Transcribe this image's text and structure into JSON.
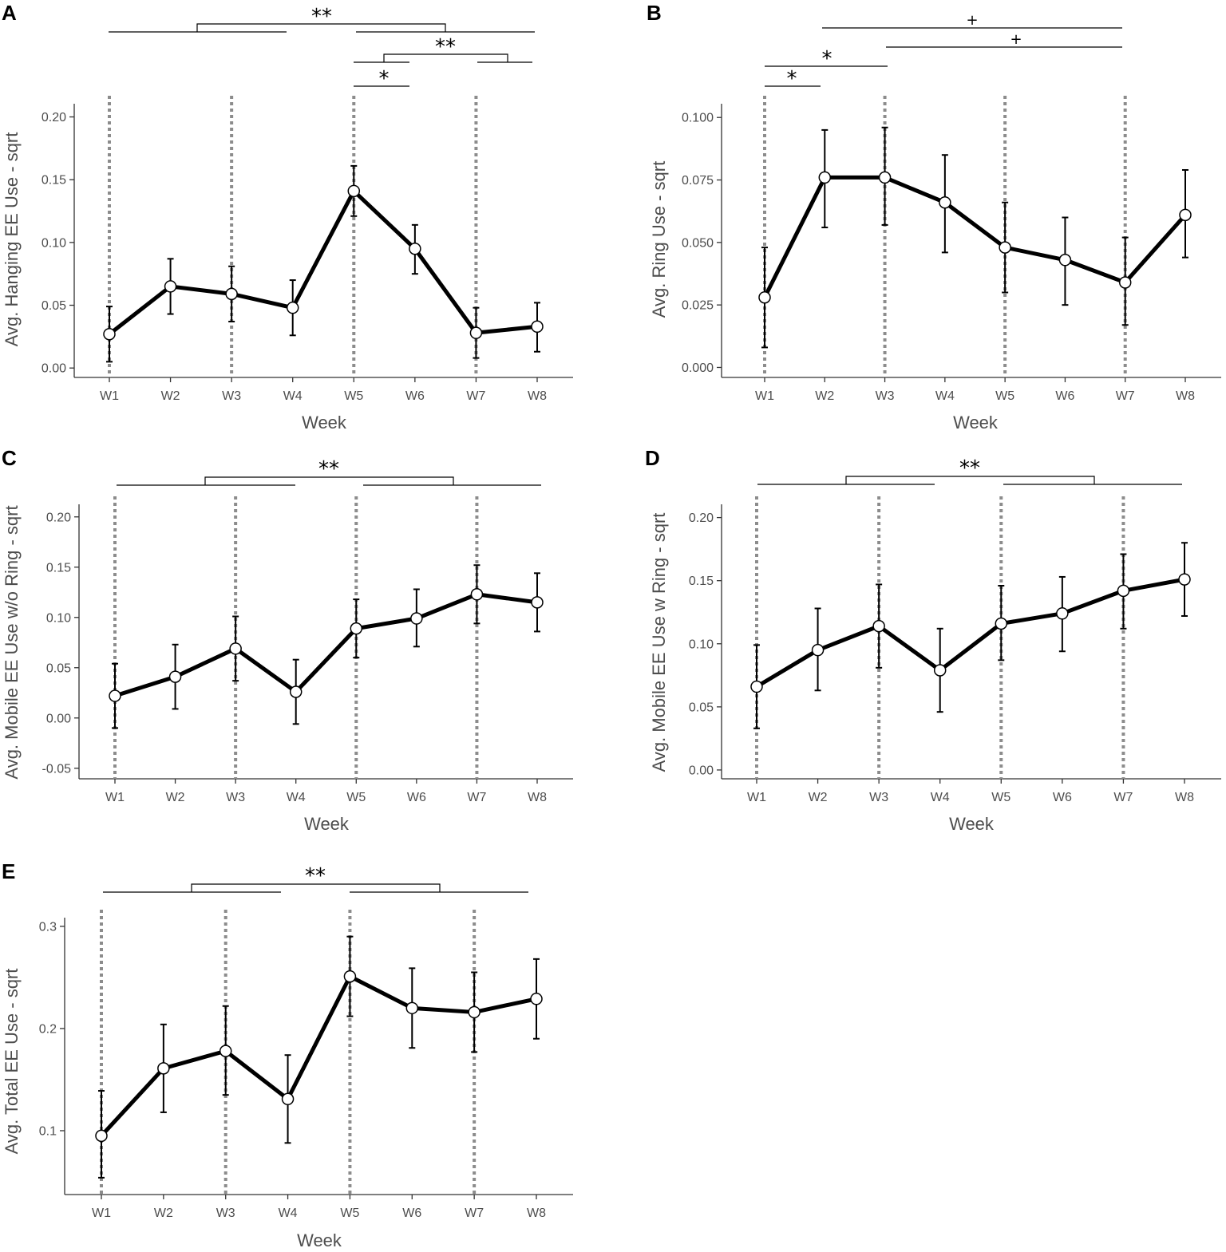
{
  "chart_data": [
    {
      "panel": "A",
      "type": "line",
      "xlabel": "Week",
      "ylabel": "Avg. Hanging EE Use - sqrt",
      "categories": [
        "W1",
        "W2",
        "W3",
        "W4",
        "W5",
        "W6",
        "W7",
        "W8"
      ],
      "values": [
        0.027,
        0.065,
        0.059,
        0.048,
        0.141,
        0.095,
        0.028,
        0.033
      ],
      "err_lo": [
        0.005,
        0.043,
        0.037,
        0.026,
        0.121,
        0.075,
        0.008,
        0.013
      ],
      "err_hi": [
        0.049,
        0.087,
        0.081,
        0.07,
        0.161,
        0.114,
        0.048,
        0.052
      ],
      "ylim": [
        -0.0075,
        0.2105
      ],
      "yticks": [
        0.0,
        0.05,
        0.1,
        0.15,
        0.2
      ],
      "ytick_labels": [
        "0.00",
        "0.05",
        "0.10",
        "0.15",
        "0.20"
      ],
      "vlines": [
        "W1",
        "W3",
        "W5",
        "W7"
      ],
      "sig_brackets": [
        {
          "label": "**",
          "left": [
            "W1",
            "W4"
          ],
          "right": [
            "W5",
            "W8"
          ]
        },
        {
          "label": "**",
          "left": [
            "W5",
            "W6"
          ],
          "right": [
            "W7",
            "W8"
          ]
        },
        {
          "label": "*",
          "between": [
            "W5",
            "W6"
          ]
        }
      ]
    },
    {
      "panel": "B",
      "type": "line",
      "xlabel": "Week",
      "ylabel": "Avg. Ring Use - sqrt",
      "categories": [
        "W1",
        "W2",
        "W3",
        "W4",
        "W5",
        "W6",
        "W7",
        "W8"
      ],
      "values": [
        0.028,
        0.076,
        0.076,
        0.066,
        0.048,
        0.043,
        0.034,
        0.061
      ],
      "err_lo": [
        0.008,
        0.056,
        0.057,
        0.046,
        0.03,
        0.025,
        0.017,
        0.044
      ],
      "err_hi": [
        0.048,
        0.095,
        0.096,
        0.085,
        0.066,
        0.06,
        0.052,
        0.079
      ],
      "ylim": [
        -0.004,
        0.1055
      ],
      "yticks": [
        0.0,
        0.025,
        0.05,
        0.075,
        0.1
      ],
      "ytick_labels": [
        "0.000",
        "0.025",
        "0.050",
        "0.075",
        "0.100"
      ],
      "vlines": [
        "W1",
        "W3",
        "W5",
        "W7"
      ],
      "sig_brackets": [
        {
          "label": "+",
          "between": [
            "W2",
            "W7"
          ]
        },
        {
          "label": "+",
          "between": [
            "W3",
            "W7"
          ]
        },
        {
          "label": "*",
          "between": [
            "W1",
            "W3"
          ]
        },
        {
          "label": "*",
          "between": [
            "W1",
            "W2"
          ]
        }
      ]
    },
    {
      "panel": "C",
      "type": "line",
      "xlabel": "Week",
      "ylabel": "Avg. Mobile EE Use w/o Ring - sqrt",
      "categories": [
        "W1",
        "W2",
        "W3",
        "W4",
        "W5",
        "W6",
        "W7",
        "W8"
      ],
      "values": [
        0.022,
        0.041,
        0.069,
        0.026,
        0.089,
        0.099,
        0.123,
        0.115
      ],
      "err_lo": [
        -0.01,
        0.009,
        0.037,
        -0.006,
        0.06,
        0.071,
        0.094,
        0.086
      ],
      "err_hi": [
        0.054,
        0.073,
        0.101,
        0.058,
        0.118,
        0.128,
        0.152,
        0.144
      ],
      "ylim": [
        -0.0605,
        0.2125
      ],
      "yticks": [
        -0.05,
        0.0,
        0.05,
        0.1,
        0.15,
        0.2
      ],
      "ytick_labels": [
        "-0.05",
        "0.00",
        "0.05",
        "0.10",
        "0.15",
        "0.20"
      ],
      "vlines": [
        "W1",
        "W3",
        "W5",
        "W7"
      ],
      "sig_brackets": [
        {
          "label": "**",
          "left": [
            "W1",
            "W4"
          ],
          "right": [
            "W5",
            "W8"
          ]
        }
      ]
    },
    {
      "panel": "D",
      "type": "line",
      "xlabel": "Week",
      "ylabel": "Avg. Mobile EE Use w Ring - sqrt",
      "categories": [
        "W1",
        "W2",
        "W3",
        "W4",
        "W5",
        "W6",
        "W7",
        "W8"
      ],
      "values": [
        0.066,
        0.095,
        0.114,
        0.079,
        0.116,
        0.124,
        0.142,
        0.151
      ],
      "err_lo": [
        0.033,
        0.063,
        0.081,
        0.046,
        0.087,
        0.094,
        0.112,
        0.122
      ],
      "err_hi": [
        0.099,
        0.128,
        0.147,
        0.112,
        0.146,
        0.153,
        0.171,
        0.18
      ],
      "ylim": [
        -0.007,
        0.2105
      ],
      "yticks": [
        0.0,
        0.05,
        0.1,
        0.15,
        0.2
      ],
      "ytick_labels": [
        "0.00",
        "0.05",
        "0.10",
        "0.15",
        "0.20"
      ],
      "vlines": [
        "W1",
        "W3",
        "W5",
        "W7"
      ],
      "sig_brackets": [
        {
          "label": "**",
          "left": [
            "W1",
            "W4"
          ],
          "right": [
            "W5",
            "W8"
          ]
        }
      ]
    },
    {
      "panel": "E",
      "type": "line",
      "xlabel": "Week",
      "ylabel": "Avg. Total EE Use - sqrt",
      "categories": [
        "W1",
        "W2",
        "W3",
        "W4",
        "W5",
        "W6",
        "W7",
        "W8"
      ],
      "values": [
        0.095,
        0.161,
        0.178,
        0.131,
        0.251,
        0.22,
        0.216,
        0.229
      ],
      "err_lo": [
        0.054,
        0.118,
        0.135,
        0.088,
        0.212,
        0.181,
        0.177,
        0.19
      ],
      "err_hi": [
        0.139,
        0.204,
        0.222,
        0.174,
        0.29,
        0.259,
        0.255,
        0.268
      ],
      "ylim": [
        0.0375,
        0.3085
      ],
      "yticks": [
        0.1,
        0.2,
        0.3
      ],
      "ytick_labels": [
        "0.1",
        "0.2",
        "0.3"
      ],
      "vlines": [
        "W1",
        "W3",
        "W5",
        "W7"
      ],
      "sig_brackets": [
        {
          "label": "**",
          "left": [
            "W1",
            "W4"
          ],
          "right": [
            "W5",
            "W8"
          ]
        }
      ]
    }
  ]
}
